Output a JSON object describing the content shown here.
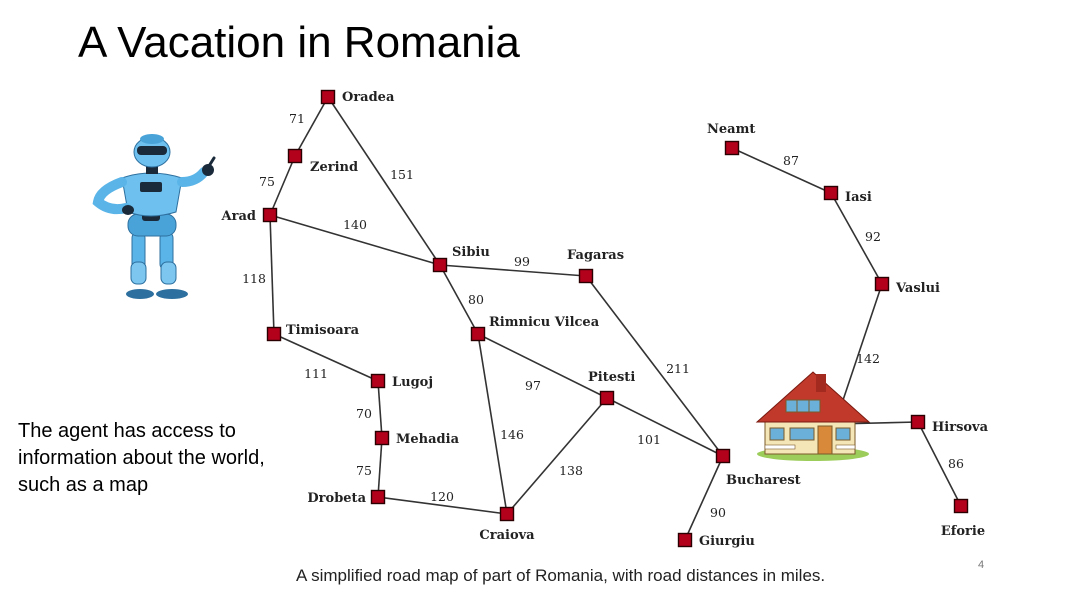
{
  "slide": {
    "title": "A Vacation in Romania",
    "side_note": "The agent has access to information about the world, such as a map",
    "caption": "A simplified road map of part of Romania, with road distances in miles.",
    "page_number": "4"
  },
  "colors": {
    "node_fill": "#b3001b",
    "road": "#333333",
    "robot_body": "#5ab4e8",
    "house_roof": "#c0392b",
    "house_wall": "#f5e6b8"
  },
  "map": {
    "cities": [
      {
        "id": "oradea",
        "name": "Oradea"
      },
      {
        "id": "zerind",
        "name": "Zerind"
      },
      {
        "id": "arad",
        "name": "Arad"
      },
      {
        "id": "timisoara",
        "name": "Timisoara"
      },
      {
        "id": "lugoj",
        "name": "Lugoj"
      },
      {
        "id": "mehadia",
        "name": "Mehadia"
      },
      {
        "id": "drobeta",
        "name": "Drobeta"
      },
      {
        "id": "craiova",
        "name": "Craiova"
      },
      {
        "id": "sibiu",
        "name": "Sibiu"
      },
      {
        "id": "rimnicu",
        "name": "Rimnicu Vilcea"
      },
      {
        "id": "fagaras",
        "name": "Fagaras"
      },
      {
        "id": "pitesti",
        "name": "Pitesti"
      },
      {
        "id": "bucharest",
        "name": "Bucharest"
      },
      {
        "id": "giurgiu",
        "name": "Giurgiu"
      },
      {
        "id": "neamt",
        "name": "Neamt"
      },
      {
        "id": "iasi",
        "name": "Iasi"
      },
      {
        "id": "vaslui",
        "name": "Vaslui"
      },
      {
        "id": "hirsova",
        "name": "Hirsova"
      },
      {
        "id": "eforie",
        "name": "Eforie"
      }
    ],
    "roads": [
      {
        "from": "oradea",
        "to": "zerind",
        "distance": "71"
      },
      {
        "from": "zerind",
        "to": "arad",
        "distance": "75"
      },
      {
        "from": "oradea",
        "to": "sibiu",
        "distance": "151"
      },
      {
        "from": "arad",
        "to": "sibiu",
        "distance": "140"
      },
      {
        "from": "arad",
        "to": "timisoara",
        "distance": "118"
      },
      {
        "from": "timisoara",
        "to": "lugoj",
        "distance": "111"
      },
      {
        "from": "lugoj",
        "to": "mehadia",
        "distance": "70"
      },
      {
        "from": "mehadia",
        "to": "drobeta",
        "distance": "75"
      },
      {
        "from": "drobeta",
        "to": "craiova",
        "distance": "120"
      },
      {
        "from": "sibiu",
        "to": "fagaras",
        "distance": "99"
      },
      {
        "from": "sibiu",
        "to": "rimnicu",
        "distance": "80"
      },
      {
        "from": "rimnicu",
        "to": "craiova",
        "distance": "146"
      },
      {
        "from": "rimnicu",
        "to": "pitesti",
        "distance": "97"
      },
      {
        "from": "craiova",
        "to": "pitesti",
        "distance": "138"
      },
      {
        "from": "pitesti",
        "to": "bucharest",
        "distance": "101"
      },
      {
        "from": "fagaras",
        "to": "bucharest",
        "distance": "211"
      },
      {
        "from": "bucharest",
        "to": "giurgiu",
        "distance": "90"
      },
      {
        "from": "neamt",
        "to": "iasi",
        "distance": "87"
      },
      {
        "from": "iasi",
        "to": "vaslui",
        "distance": "92"
      },
      {
        "from": "vaslui",
        "to": "urziceni",
        "distance": "142"
      },
      {
        "from": "urziceni",
        "to": "hirsova",
        "distance": ""
      },
      {
        "from": "hirsova",
        "to": "eforie",
        "distance": "86"
      }
    ],
    "icons": {
      "agent": "robot-icon",
      "destination": "house-icon"
    }
  }
}
